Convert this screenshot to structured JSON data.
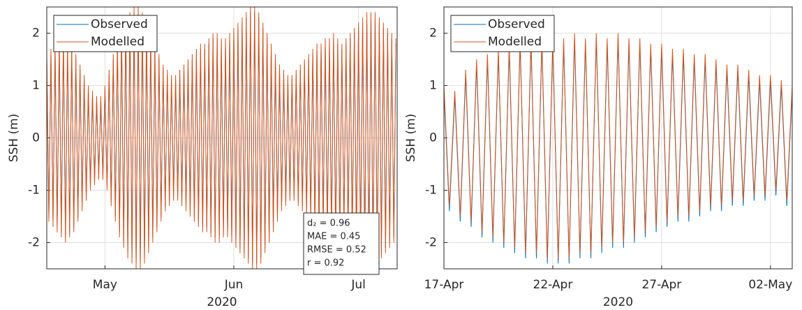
{
  "chart_data": [
    {
      "type": "line",
      "ylabel": "SSH (m)",
      "xlabel": "2020",
      "x": [
        108,
        108.5,
        109,
        109.5,
        110,
        110.5,
        111,
        111.5,
        112,
        112.5,
        113,
        113.5,
        114,
        114.5,
        115,
        115.5,
        116,
        116.5,
        117,
        117.5,
        118,
        118.5,
        119,
        119.5,
        120,
        120.5,
        121,
        121.5,
        122,
        122.5,
        123,
        123.5,
        124,
        124.5,
        125,
        125.5,
        126,
        126.5,
        127,
        127.5,
        128,
        128.5,
        129,
        129.5,
        130,
        130.5,
        131,
        131.5,
        132,
        132.5,
        133,
        133.5,
        134,
        134.5,
        135,
        135.5,
        136,
        136.5,
        137,
        137.5,
        138,
        138.5,
        139,
        139.5,
        140,
        140.5,
        141,
        141.5,
        142,
        142.5,
        143,
        143.5,
        144,
        144.5,
        145,
        145.5,
        146,
        146.5,
        147,
        147.5,
        148,
        148.5,
        149,
        149.5,
        150,
        150.5,
        151,
        151.5,
        152,
        152.5,
        153,
        153.5,
        154,
        154.5,
        155,
        155.5,
        156,
        156.5,
        157,
        157.5,
        158,
        158.5,
        159,
        159.5,
        160,
        160.5,
        161,
        161.5,
        162,
        162.5,
        163,
        163.5,
        164,
        164.5,
        165,
        165.5,
        166,
        166.5,
        167,
        167.5,
        168,
        168.5,
        169,
        169.5,
        170,
        170.5,
        171,
        171.5,
        172,
        172.5,
        173,
        173.5,
        174,
        174.5,
        175,
        175.5,
        176,
        176.5,
        177,
        177.5,
        178,
        178.5,
        179,
        179.5,
        180,
        180.5,
        181,
        181.5,
        182,
        182.5,
        183,
        183.5,
        184,
        184.5,
        185,
        185.5,
        186,
        186.5,
        187,
        187.5,
        188,
        188.5,
        189,
        189.5,
        190,
        190.5,
        191,
        191.5,
        192
      ],
      "series": [
        {
          "name": "Observed",
          "color": "#0072BD",
          "values": [
            1.5,
            -1.5,
            1.6,
            -1.6,
            1.7,
            -1.7,
            1.8,
            -1.8,
            1.9,
            -1.9,
            1.8,
            -1.8,
            1.7,
            -1.7,
            1.5,
            -1.5,
            1.3,
            -1.3,
            1.1,
            -1.1,
            0.9,
            -0.9,
            0.8,
            -0.8,
            0.7,
            -0.7,
            0.7,
            -0.7,
            0.9,
            -0.9,
            1.2,
            -1.2,
            1.5,
            -1.5,
            1.8,
            -1.8,
            2.0,
            -2.0,
            2.2,
            -2.2,
            2.3,
            -2.3,
            2.4,
            -2.4,
            2.4,
            -2.4,
            2.3,
            -2.3,
            2.1,
            -2.1,
            1.9,
            -1.9,
            1.7,
            -1.7,
            1.5,
            -1.5,
            1.3,
            -1.3,
            1.2,
            -1.2,
            1.1,
            -1.1,
            1.1,
            -1.1,
            1.2,
            -1.2,
            1.3,
            -1.3,
            1.4,
            -1.4,
            1.5,
            -1.5,
            1.6,
            -1.6,
            1.7,
            -1.7,
            1.7,
            -1.7,
            1.8,
            -1.8,
            1.9,
            -1.9,
            1.9,
            -1.9,
            1.8,
            -1.8,
            1.8,
            -1.8,
            1.9,
            -1.9,
            2.0,
            -2.0,
            2.1,
            -2.1,
            2.2,
            -2.2,
            2.3,
            -2.3,
            2.4,
            -2.4,
            2.4,
            -2.4,
            2.3,
            -2.3,
            2.1,
            -2.1,
            1.9,
            -1.9,
            1.7,
            -1.7,
            1.5,
            -1.5,
            1.3,
            -1.3,
            1.2,
            -1.2,
            1.1,
            -1.1,
            1.1,
            -1.1,
            1.2,
            -1.2,
            1.3,
            -1.3,
            1.4,
            -1.4,
            1.5,
            -1.5,
            1.6,
            -1.6,
            1.7,
            -1.7,
            1.7,
            -1.7,
            1.8,
            -1.8,
            1.8,
            -1.8,
            1.9,
            -1.9,
            1.8,
            -1.8,
            1.7,
            -1.7,
            1.8,
            -1.8,
            1.9,
            -1.9,
            2.0,
            -2.0,
            2.1,
            -2.1,
            2.2,
            -2.2,
            2.3,
            -2.3,
            2.3,
            -2.3,
            2.3,
            -2.3,
            2.2,
            -2.2,
            2.1,
            -2.1,
            2.0,
            -2.0,
            1.9,
            -1.9,
            1.8
          ]
        },
        {
          "name": "Modelled",
          "color": "#D95319",
          "values": [
            1.6,
            -1.6,
            1.7,
            -1.7,
            1.8,
            -1.8,
            1.9,
            -1.9,
            2.0,
            -2.0,
            1.9,
            -1.9,
            1.8,
            -1.8,
            1.6,
            -1.6,
            1.4,
            -1.4,
            1.2,
            -1.2,
            1.0,
            -1.0,
            0.9,
            -0.9,
            0.8,
            -0.8,
            0.8,
            -0.8,
            1.0,
            -1.0,
            1.3,
            -1.3,
            1.6,
            -1.6,
            1.9,
            -1.9,
            2.1,
            -2.1,
            2.3,
            -2.3,
            2.4,
            -2.4,
            2.5,
            -2.5,
            2.5,
            -2.5,
            2.4,
            -2.4,
            2.2,
            -2.2,
            2.0,
            -2.0,
            1.8,
            -1.8,
            1.6,
            -1.6,
            1.4,
            -1.4,
            1.3,
            -1.3,
            1.2,
            -1.2,
            1.2,
            -1.2,
            1.3,
            -1.3,
            1.4,
            -1.4,
            1.5,
            -1.5,
            1.6,
            -1.6,
            1.7,
            -1.7,
            1.8,
            -1.8,
            1.8,
            -1.8,
            1.9,
            -1.9,
            2.0,
            -2.0,
            2.0,
            -2.0,
            1.9,
            -1.9,
            1.9,
            -1.9,
            2.0,
            -2.0,
            2.1,
            -2.1,
            2.2,
            -2.2,
            2.3,
            -2.3,
            2.4,
            -2.4,
            2.5,
            -2.5,
            2.5,
            -2.5,
            2.4,
            -2.4,
            2.2,
            -2.2,
            2.0,
            -2.0,
            1.8,
            -1.8,
            1.6,
            -1.6,
            1.4,
            -1.4,
            1.3,
            -1.3,
            1.2,
            -1.2,
            1.2,
            -1.2,
            1.3,
            -1.3,
            1.4,
            -1.4,
            1.5,
            -1.5,
            1.6,
            -1.6,
            1.7,
            -1.7,
            1.8,
            -1.8,
            1.8,
            -1.8,
            1.9,
            -1.9,
            1.9,
            -1.9,
            2.0,
            -2.0,
            1.9,
            -1.9,
            1.8,
            -1.8,
            1.9,
            -1.9,
            2.0,
            -2.0,
            2.1,
            -2.1,
            2.2,
            -2.2,
            2.3,
            -2.3,
            2.4,
            -2.4,
            2.4,
            -2.4,
            2.4,
            -2.4,
            2.3,
            -2.3,
            2.2,
            -2.2,
            2.1,
            -2.1,
            2.0,
            -2.0,
            1.9
          ]
        }
      ],
      "xlim": [
        108,
        192.3
      ],
      "xticks": [
        {
          "value": 122,
          "label": "May"
        },
        {
          "value": 153,
          "label": "Jun"
        },
        {
          "value": 183,
          "label": "Jul"
        }
      ],
      "ylim": [
        -2.5,
        2.5
      ],
      "yticks": [
        -2,
        -1,
        0,
        1,
        2
      ],
      "grid": true,
      "legend": "upper-left",
      "annotations": [
        "d₂ = 0.96",
        "MAE = 0.45",
        "RMSE = 0.52",
        "r = 0.92"
      ]
    },
    {
      "type": "line",
      "ylabel": "SSH (m)",
      "xlabel": "2020",
      "x": [
        108,
        108.25,
        108.5,
        108.75,
        109,
        109.25,
        109.5,
        109.75,
        110,
        110.25,
        110.5,
        110.75,
        111,
        111.25,
        111.5,
        111.75,
        112,
        112.25,
        112.5,
        112.75,
        113,
        113.25,
        113.5,
        113.75,
        114,
        114.25,
        114.5,
        114.75,
        115,
        115.25,
        115.5,
        115.75,
        116,
        116.25,
        116.5,
        116.75,
        117,
        117.25,
        117.5,
        117.75,
        118,
        118.25,
        118.5,
        118.75,
        119,
        119.25,
        119.5,
        119.75,
        120,
        120.25,
        120.5,
        120.75,
        121,
        121.25,
        121.5,
        121.75,
        122,
        122.25,
        122.5,
        122.75,
        123,
        123.25,
        123.5,
        123.75,
        124
      ],
      "series": [
        {
          "name": "Observed",
          "color": "#0072BD",
          "values": [
            0.9,
            -1.4,
            0.8,
            -1.6,
            1.2,
            -1.7,
            1.4,
            -1.9,
            1.5,
            -2.0,
            1.6,
            -2.1,
            1.7,
            -2.2,
            1.8,
            -2.3,
            1.8,
            -2.3,
            1.8,
            -2.4,
            1.8,
            -2.4,
            1.8,
            -2.4,
            1.9,
            -2.3,
            1.8,
            -2.3,
            1.9,
            -2.2,
            1.8,
            -2.1,
            1.9,
            -2.1,
            1.8,
            -2.0,
            1.8,
            -1.9,
            1.7,
            -1.8,
            1.7,
            -1.7,
            1.6,
            -1.6,
            1.6,
            -1.6,
            1.5,
            -1.5,
            1.5,
            -1.4,
            1.4,
            -1.4,
            1.3,
            -1.3,
            1.3,
            -1.3,
            1.2,
            -1.2,
            1.1,
            -1.2,
            1.1,
            -1.1,
            1.0,
            -1.3,
            0.9
          ]
        },
        {
          "name": "Modelled",
          "color": "#D95319",
          "values": [
            1.0,
            -1.3,
            0.9,
            -1.5,
            1.3,
            -1.6,
            1.5,
            -1.8,
            1.6,
            -1.9,
            1.7,
            -2.0,
            1.8,
            -2.1,
            1.9,
            -2.2,
            1.9,
            -2.2,
            1.9,
            -2.3,
            1.9,
            -2.3,
            1.9,
            -2.3,
            2.0,
            -2.2,
            1.9,
            -2.2,
            2.0,
            -2.1,
            1.9,
            -2.0,
            2.0,
            -2.0,
            1.9,
            -1.9,
            1.9,
            -1.8,
            1.8,
            -1.7,
            1.8,
            -1.6,
            1.7,
            -1.5,
            1.7,
            -1.5,
            1.6,
            -1.4,
            1.6,
            -1.3,
            1.5,
            -1.3,
            1.4,
            -1.2,
            1.4,
            -1.2,
            1.3,
            -1.1,
            1.2,
            -1.1,
            1.2,
            -1.0,
            1.1,
            -1.2,
            1.0
          ]
        }
      ],
      "xlim": [
        108,
        124
      ],
      "xticks": [
        {
          "value": 108,
          "label": "17-Apr"
        },
        {
          "value": 113,
          "label": "22-Apr"
        },
        {
          "value": 118,
          "label": "27-Apr"
        },
        {
          "value": 123,
          "label": "02-May"
        }
      ],
      "ylim": [
        -2.5,
        2.5
      ],
      "yticks": [
        -2,
        -1,
        0,
        1,
        2
      ],
      "grid": true,
      "legend": "upper-left"
    }
  ]
}
